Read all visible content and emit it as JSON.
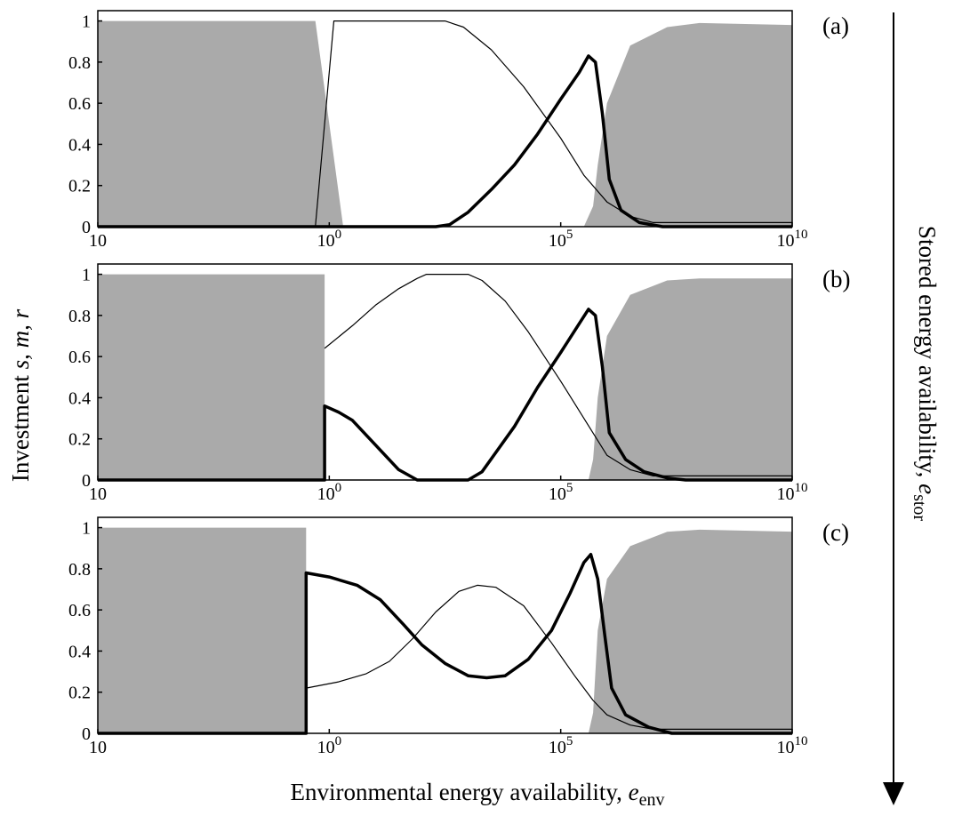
{
  "colors": {
    "shade": "#aaaaaa",
    "line": "#000000",
    "background": "#ffffff"
  },
  "axis_labels": {
    "x_text": "Environmental energy availability, ",
    "x_var": "e",
    "x_sub": "env",
    "y_text": "Investment  ",
    "y_vars": "s, m, r",
    "right_text": "Stored energy availability, ",
    "right_var": "e",
    "right_sub": "stor"
  },
  "x_tick_labels": [
    "10",
    "10",
    "10",
    "10"
  ],
  "x_tick_exponents": [
    "",
    "0",
    "5",
    "10"
  ],
  "y_tick_labels": [
    "0",
    "0.2",
    "0.4",
    "0.6",
    "0.8",
    "1"
  ],
  "chart_data": [
    {
      "type": "area",
      "panel_label": "(a)",
      "x_scale": "log10",
      "xlim": [
        -5,
        10
      ],
      "ylim": [
        0,
        1.05
      ],
      "grid": false,
      "series": [
        {
          "style": "shaded",
          "points": [
            [
              -5,
              1
            ],
            [
              -0.3,
              1
            ],
            [
              0.3,
              0
            ],
            [
              5.5,
              0
            ],
            [
              5.7,
              0.1
            ],
            [
              5.8,
              0.3
            ],
            [
              6.0,
              0.6
            ],
            [
              6.5,
              0.88
            ],
            [
              7.3,
              0.97
            ],
            [
              8.0,
              0.99
            ],
            [
              10,
              0.98
            ]
          ]
        },
        {
          "style": "thin",
          "points": [
            [
              -5,
              0
            ],
            [
              -0.3,
              0
            ],
            [
              0.1,
              1
            ],
            [
              2.5,
              1
            ],
            [
              2.9,
              0.97
            ],
            [
              3.5,
              0.86
            ],
            [
              4.2,
              0.68
            ],
            [
              5.0,
              0.43
            ],
            [
              5.5,
              0.25
            ],
            [
              6.0,
              0.12
            ],
            [
              6.5,
              0.05
            ],
            [
              7.0,
              0.02
            ],
            [
              10,
              0.02
            ]
          ]
        },
        {
          "style": "thick",
          "points": [
            [
              -5,
              0
            ],
            [
              2.3,
              0
            ],
            [
              2.6,
              0.01
            ],
            [
              3.0,
              0.07
            ],
            [
              3.5,
              0.18
            ],
            [
              4.0,
              0.3
            ],
            [
              4.5,
              0.45
            ],
            [
              5.0,
              0.62
            ],
            [
              5.4,
              0.75
            ],
            [
              5.6,
              0.83
            ],
            [
              5.75,
              0.8
            ],
            [
              5.9,
              0.55
            ],
            [
              6.05,
              0.23
            ],
            [
              6.3,
              0.08
            ],
            [
              6.7,
              0.02
            ],
            [
              7.2,
              0
            ],
            [
              10,
              0
            ]
          ]
        }
      ]
    },
    {
      "type": "area",
      "panel_label": "(b)",
      "x_scale": "log10",
      "xlim": [
        -5,
        10
      ],
      "ylim": [
        0,
        1.05
      ],
      "grid": false,
      "series": [
        {
          "style": "shaded",
          "points": [
            [
              -5,
              1
            ],
            [
              -0.1,
              1
            ],
            [
              -0.1,
              0
            ],
            [
              5.6,
              0
            ],
            [
              5.7,
              0.1
            ],
            [
              5.8,
              0.4
            ],
            [
              6.0,
              0.7
            ],
            [
              6.5,
              0.9
            ],
            [
              7.3,
              0.97
            ],
            [
              8.0,
              0.98
            ],
            [
              10,
              0.98
            ]
          ]
        },
        {
          "style": "thin",
          "points": [
            [
              -0.1,
              0.64
            ],
            [
              0.5,
              0.75
            ],
            [
              1.0,
              0.85
            ],
            [
              1.5,
              0.93
            ],
            [
              1.9,
              0.98
            ],
            [
              2.1,
              1
            ],
            [
              3.0,
              1
            ],
            [
              3.3,
              0.97
            ],
            [
              3.8,
              0.87
            ],
            [
              4.3,
              0.72
            ],
            [
              5.0,
              0.48
            ],
            [
              5.5,
              0.3
            ],
            [
              6.0,
              0.12
            ],
            [
              6.5,
              0.05
            ],
            [
              7.0,
              0.02
            ],
            [
              10,
              0.02
            ]
          ]
        },
        {
          "style": "thick",
          "points": [
            [
              -5,
              0
            ],
            [
              -0.1,
              0
            ],
            [
              -0.1,
              0.36
            ],
            [
              0.2,
              0.33
            ],
            [
              0.5,
              0.29
            ],
            [
              1.0,
              0.17
            ],
            [
              1.5,
              0.05
            ],
            [
              1.9,
              0
            ],
            [
              3.0,
              0
            ],
            [
              3.3,
              0.04
            ],
            [
              4.0,
              0.26
            ],
            [
              4.5,
              0.45
            ],
            [
              5.0,
              0.62
            ],
            [
              5.4,
              0.76
            ],
            [
              5.6,
              0.83
            ],
            [
              5.75,
              0.8
            ],
            [
              5.9,
              0.55
            ],
            [
              6.05,
              0.23
            ],
            [
              6.4,
              0.1
            ],
            [
              6.8,
              0.04
            ],
            [
              7.3,
              0.01
            ],
            [
              7.7,
              0
            ],
            [
              10,
              0
            ]
          ]
        }
      ]
    },
    {
      "type": "area",
      "panel_label": "(c)",
      "x_scale": "log10",
      "xlim": [
        -5,
        10
      ],
      "ylim": [
        0,
        1.05
      ],
      "grid": false,
      "series": [
        {
          "style": "shaded",
          "points": [
            [
              -5,
              1
            ],
            [
              -0.5,
              1
            ],
            [
              -0.5,
              0
            ],
            [
              5.6,
              0
            ],
            [
              5.7,
              0.1
            ],
            [
              5.8,
              0.5
            ],
            [
              6.0,
              0.75
            ],
            [
              6.5,
              0.91
            ],
            [
              7.3,
              0.98
            ],
            [
              8.0,
              0.99
            ],
            [
              10,
              0.98
            ]
          ]
        },
        {
          "style": "thin",
          "points": [
            [
              -0.5,
              0.22
            ],
            [
              0.2,
              0.25
            ],
            [
              0.8,
              0.29
            ],
            [
              1.3,
              0.35
            ],
            [
              1.8,
              0.46
            ],
            [
              2.3,
              0.59
            ],
            [
              2.8,
              0.69
            ],
            [
              3.2,
              0.72
            ],
            [
              3.6,
              0.71
            ],
            [
              4.2,
              0.62
            ],
            [
              4.8,
              0.44
            ],
            [
              5.3,
              0.28
            ],
            [
              5.7,
              0.16
            ],
            [
              6.0,
              0.09
            ],
            [
              6.5,
              0.04
            ],
            [
              7.0,
              0.02
            ],
            [
              10,
              0.02
            ]
          ]
        },
        {
          "style": "thick",
          "points": [
            [
              -5,
              0
            ],
            [
              -0.5,
              0
            ],
            [
              -0.5,
              0.78
            ],
            [
              0.0,
              0.76
            ],
            [
              0.6,
              0.72
            ],
            [
              1.1,
              0.65
            ],
            [
              1.6,
              0.53
            ],
            [
              2.0,
              0.43
            ],
            [
              2.5,
              0.34
            ],
            [
              3.0,
              0.28
            ],
            [
              3.4,
              0.27
            ],
            [
              3.8,
              0.28
            ],
            [
              4.3,
              0.36
            ],
            [
              4.8,
              0.5
            ],
            [
              5.2,
              0.68
            ],
            [
              5.5,
              0.83
            ],
            [
              5.65,
              0.87
            ],
            [
              5.8,
              0.75
            ],
            [
              5.95,
              0.48
            ],
            [
              6.1,
              0.22
            ],
            [
              6.4,
              0.09
            ],
            [
              6.9,
              0.03
            ],
            [
              7.4,
              0
            ],
            [
              10,
              0
            ]
          ]
        }
      ]
    }
  ]
}
